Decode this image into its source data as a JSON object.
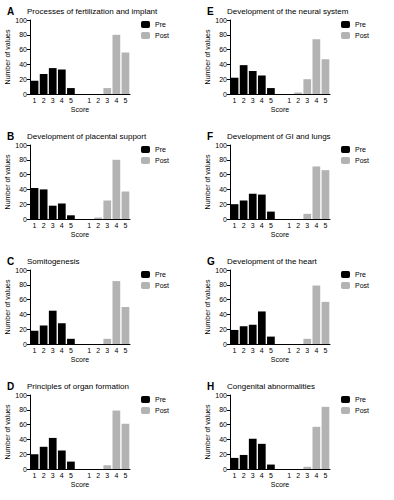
{
  "chart_data": [
    {
      "type": "bar",
      "panel": "A",
      "title": "Processes of fertilization and implant",
      "x_label": "Score",
      "y_label": "Number of values",
      "categories": [
        "1",
        "2",
        "3",
        "4",
        "5",
        null,
        "1",
        "2",
        "3",
        "4",
        "5"
      ],
      "series": [
        {
          "name": "Pre",
          "color": "#000000",
          "values": [
            18,
            27,
            35,
            33,
            8,
            null,
            null,
            null,
            null,
            null,
            null
          ]
        },
        {
          "name": "Post",
          "color": "#b3b3b3",
          "values": [
            null,
            null,
            null,
            null,
            null,
            null,
            0,
            0,
            8,
            80,
            56
          ]
        }
      ],
      "ylim": [
        0,
        100
      ],
      "yticks": [
        0,
        20,
        40,
        60,
        80,
        100
      ],
      "legend": "right"
    },
    {
      "type": "bar",
      "panel": "B",
      "title": "Development of placental support",
      "x_label": "Score",
      "y_label": "Number of values",
      "categories": [
        "1",
        "2",
        "3",
        "4",
        "5",
        null,
        "1",
        "2",
        "3",
        "4",
        "5"
      ],
      "series": [
        {
          "name": "Pre",
          "color": "#000000",
          "values": [
            42,
            40,
            18,
            21,
            5,
            null,
            null,
            null,
            null,
            null,
            null
          ]
        },
        {
          "name": "Post",
          "color": "#b3b3b3",
          "values": [
            null,
            null,
            null,
            null,
            null,
            null,
            0,
            2,
            25,
            80,
            37
          ]
        }
      ],
      "ylim": [
        0,
        100
      ],
      "yticks": [
        0,
        20,
        40,
        60,
        80,
        100
      ],
      "legend": "right"
    },
    {
      "type": "bar",
      "panel": "C",
      "title": "Somitogenesis",
      "x_label": "Score",
      "y_label": "Number of values",
      "categories": [
        "1",
        "2",
        "3",
        "4",
        "5",
        null,
        "1",
        "2",
        "3",
        "4",
        "5"
      ],
      "series": [
        {
          "name": "Pre",
          "color": "#000000",
          "values": [
            18,
            25,
            45,
            28,
            7,
            null,
            null,
            null,
            null,
            null,
            null
          ]
        },
        {
          "name": "Post",
          "color": "#b3b3b3",
          "values": [
            null,
            null,
            null,
            null,
            null,
            null,
            0,
            0,
            7,
            85,
            50
          ]
        }
      ],
      "ylim": [
        0,
        100
      ],
      "yticks": [
        0,
        20,
        40,
        60,
        80,
        100
      ],
      "legend": "right"
    },
    {
      "type": "bar",
      "panel": "D",
      "title": "Principles of organ formation",
      "x_label": "Score",
      "y_label": "Number of values",
      "categories": [
        "1",
        "2",
        "3",
        "4",
        "5",
        null,
        "1",
        "2",
        "3",
        "4",
        "5"
      ],
      "series": [
        {
          "name": "Pre",
          "color": "#000000",
          "values": [
            20,
            30,
            42,
            25,
            10,
            null,
            null,
            null,
            null,
            null,
            null
          ]
        },
        {
          "name": "Post",
          "color": "#b3b3b3",
          "values": [
            null,
            null,
            null,
            null,
            null,
            null,
            0,
            0,
            5,
            79,
            61
          ]
        }
      ],
      "ylim": [
        0,
        100
      ],
      "yticks": [
        0,
        20,
        40,
        60,
        80,
        100
      ],
      "legend": "right"
    },
    {
      "type": "bar",
      "panel": "E",
      "title": "Development of the neural system",
      "x_label": "Score",
      "y_label": "Number of values",
      "categories": [
        "1",
        "2",
        "3",
        "4",
        "5",
        null,
        "1",
        "2",
        "3",
        "4",
        "5"
      ],
      "series": [
        {
          "name": "Pre",
          "color": "#000000",
          "values": [
            22,
            39,
            31,
            25,
            8,
            null,
            null,
            null,
            null,
            null,
            null
          ]
        },
        {
          "name": "Post",
          "color": "#b3b3b3",
          "values": [
            null,
            null,
            null,
            null,
            null,
            null,
            0,
            2,
            20,
            74,
            47
          ]
        }
      ],
      "ylim": [
        0,
        100
      ],
      "yticks": [
        0,
        20,
        40,
        60,
        80,
        100
      ],
      "legend": "right"
    },
    {
      "type": "bar",
      "panel": "F",
      "title": "Development of GI and lungs",
      "x_label": "Score",
      "y_label": "Number of values",
      "categories": [
        "1",
        "2",
        "3",
        "4",
        "5",
        null,
        "1",
        "2",
        "3",
        "4",
        "5"
      ],
      "series": [
        {
          "name": "Pre",
          "color": "#000000",
          "values": [
            20,
            25,
            34,
            33,
            10,
            null,
            null,
            null,
            null,
            null,
            null
          ]
        },
        {
          "name": "Post",
          "color": "#b3b3b3",
          "values": [
            null,
            null,
            null,
            null,
            null,
            null,
            0,
            0,
            7,
            71,
            66
          ]
        }
      ],
      "ylim": [
        0,
        100
      ],
      "yticks": [
        0,
        20,
        40,
        60,
        80,
        100
      ],
      "legend": "right"
    },
    {
      "type": "bar",
      "panel": "G",
      "title": "Development of the heart",
      "x_label": "Score",
      "y_label": "Number of values",
      "categories": [
        "1",
        "2",
        "3",
        "4",
        "5",
        null,
        "1",
        "2",
        "3",
        "4",
        "5"
      ],
      "series": [
        {
          "name": "Pre",
          "color": "#000000",
          "values": [
            19,
            24,
            26,
            44,
            10,
            null,
            null,
            null,
            null,
            null,
            null
          ]
        },
        {
          "name": "Post",
          "color": "#b3b3b3",
          "values": [
            null,
            null,
            null,
            null,
            null,
            null,
            0,
            0,
            7,
            79,
            57
          ]
        }
      ],
      "ylim": [
        0,
        100
      ],
      "yticks": [
        0,
        20,
        40,
        60,
        80,
        100
      ],
      "legend": "right"
    },
    {
      "type": "bar",
      "panel": "H",
      "title": "Congenital abnormalities",
      "x_label": "Score",
      "y_label": "Number of values",
      "categories": [
        "1",
        "2",
        "3",
        "4",
        "5",
        null,
        "1",
        "2",
        "3",
        "4",
        "5"
      ],
      "series": [
        {
          "name": "Pre",
          "color": "#000000",
          "values": [
            15,
            19,
            41,
            34,
            6,
            null,
            null,
            null,
            null,
            null,
            null
          ]
        },
        {
          "name": "Post",
          "color": "#b3b3b3",
          "values": [
            null,
            null,
            null,
            null,
            null,
            null,
            0,
            0,
            3,
            57,
            84
          ]
        }
      ],
      "ylim": [
        0,
        100
      ],
      "yticks": [
        0,
        20,
        40,
        60,
        80,
        100
      ],
      "legend": "right"
    }
  ]
}
